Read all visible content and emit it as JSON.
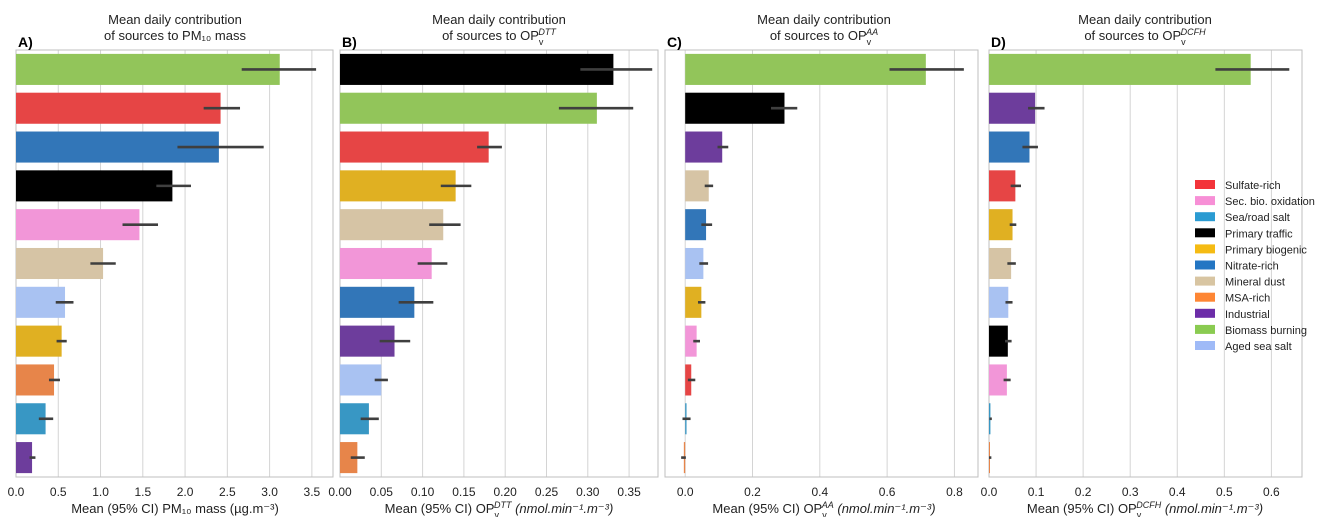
{
  "chart_data": [
    {
      "type": "bar",
      "orientation": "horizontal",
      "panel_label": "A)",
      "title": "Mean daily contribution\nof sources to PM₁₀ mass",
      "xlabel": "Mean (95% CI) PM₁₀ mass (µg.m⁻³)",
      "xlim": [
        0,
        3.75
      ],
      "xticks": [
        0.0,
        0.5,
        1.0,
        1.5,
        2.0,
        2.5,
        3.0,
        3.5
      ],
      "xtick_labels": [
        "0.0",
        "0.5",
        "1.0",
        "1.5",
        "2.0",
        "2.5",
        "3.0",
        "3.5"
      ],
      "grid": "vertical",
      "categories": [
        "Biomass burning",
        "Sulfate-rich",
        "Nitrate-rich",
        "Primary traffic",
        "Sec. bio. oxidation",
        "Mineral dust",
        "Aged sea salt",
        "Primary biogenic",
        "MSA-rich",
        "Sea/road salt",
        "Industrial"
      ],
      "values": [
        3.12,
        2.42,
        2.4,
        1.85,
        1.46,
        1.03,
        0.58,
        0.54,
        0.45,
        0.35,
        0.19
      ],
      "ci_low": [
        2.67,
        2.22,
        1.91,
        1.66,
        1.26,
        0.88,
        0.47,
        0.48,
        0.39,
        0.27,
        0.16
      ],
      "ci_high": [
        3.55,
        2.65,
        2.93,
        2.07,
        1.68,
        1.18,
        0.68,
        0.6,
        0.52,
        0.44,
        0.23
      ]
    },
    {
      "type": "bar",
      "orientation": "horizontal",
      "panel_label": "B)",
      "title": "Mean daily contribution\nof sources to OPv^DTT",
      "title_sub": "v",
      "title_sup": "DTT",
      "xlabel": "Mean (95% CI) OPv^DTT (nmol.min⁻¹.m⁻³)",
      "xlim": [
        0,
        0.385
      ],
      "xticks": [
        0.0,
        0.05,
        0.1,
        0.15,
        0.2,
        0.25,
        0.3,
        0.35
      ],
      "xtick_labels": [
        "0.00",
        "0.05",
        "0.10",
        "0.15",
        "0.20",
        "0.25",
        "0.30",
        "0.35"
      ],
      "grid": "vertical",
      "categories": [
        "Primary traffic",
        "Biomass burning",
        "Sulfate-rich",
        "Primary biogenic",
        "Mineral dust",
        "Sec. bio. oxidation",
        "Nitrate-rich",
        "Industrial",
        "Aged sea salt",
        "Sea/road salt",
        "MSA-rich"
      ],
      "values": [
        0.331,
        0.311,
        0.18,
        0.14,
        0.125,
        0.111,
        0.09,
        0.066,
        0.05,
        0.035,
        0.021
      ],
      "ci_low": [
        0.291,
        0.265,
        0.166,
        0.122,
        0.108,
        0.094,
        0.071,
        0.048,
        0.042,
        0.025,
        0.013
      ],
      "ci_high": [
        0.378,
        0.355,
        0.196,
        0.159,
        0.146,
        0.13,
        0.113,
        0.085,
        0.058,
        0.047,
        0.03
      ]
    },
    {
      "type": "bar",
      "orientation": "horizontal",
      "panel_label": "C)",
      "title": "Mean daily contribution\nof sources to OPv^AA",
      "title_sub": "v",
      "title_sup": "AA",
      "xlabel": "Mean (95% CI) OPv^AA (nmol.min⁻¹.m⁻³)",
      "xlim": [
        -0.06,
        0.87
      ],
      "xticks": [
        0.0,
        0.2,
        0.4,
        0.6,
        0.8
      ],
      "xtick_labels": [
        "0.0",
        "0.2",
        "0.4",
        "0.6",
        "0.8"
      ],
      "grid": "vertical",
      "categories": [
        "Biomass burning",
        "Primary traffic",
        "Industrial",
        "Mineral dust",
        "Nitrate-rich",
        "Aged sea salt",
        "Primary biogenic",
        "Sec. bio. oxidation",
        "Sulfate-rich",
        "Sea/road salt",
        "MSA-rich"
      ],
      "values": [
        0.715,
        0.295,
        0.11,
        0.07,
        0.062,
        0.054,
        0.048,
        0.034,
        0.018,
        0.004,
        -0.004
      ],
      "ci_low": [
        0.607,
        0.255,
        0.096,
        0.058,
        0.048,
        0.042,
        0.038,
        0.024,
        0.008,
        -0.008,
        -0.012
      ],
      "ci_high": [
        0.828,
        0.333,
        0.128,
        0.083,
        0.08,
        0.068,
        0.06,
        0.044,
        0.03,
        0.016,
        0.002
      ]
    },
    {
      "type": "bar",
      "orientation": "horizontal",
      "panel_label": "D)",
      "title": "Mean daily contribution\nof sources to OPv^DCFH",
      "title_sub": "v",
      "title_sup": "DCFH",
      "xlabel": "Mean (95% CI) OPv^DCFH (nmol.min⁻¹.m⁻³)",
      "xlim": [
        0,
        0.665
      ],
      "xticks": [
        0.0,
        0.1,
        0.2,
        0.3,
        0.4,
        0.5,
        0.6
      ],
      "xtick_labels": [
        "0.0",
        "0.1",
        "0.2",
        "0.3",
        "0.4",
        "0.5",
        "0.6"
      ],
      "grid": "vertical",
      "categories": [
        "Biomass burning",
        "Industrial",
        "Nitrate-rich",
        "Sulfate-rich",
        "Primary biogenic",
        "Mineral dust",
        "Aged sea salt",
        "Primary traffic",
        "Sec. bio. oxidation",
        "Sea/road salt",
        "MSA-rich"
      ],
      "values": [
        0.556,
        0.098,
        0.086,
        0.056,
        0.05,
        0.047,
        0.041,
        0.04,
        0.038,
        0.003,
        0.002
      ],
      "ci_low": [
        0.481,
        0.083,
        0.071,
        0.046,
        0.044,
        0.039,
        0.035,
        0.034,
        0.031,
        0.001,
        0.0
      ],
      "ci_high": [
        0.638,
        0.118,
        0.104,
        0.068,
        0.058,
        0.057,
        0.05,
        0.048,
        0.046,
        0.006,
        0.005
      ]
    }
  ],
  "legend": {
    "placement": "right",
    "entries": [
      {
        "label": "Sulfate-rich",
        "color": "#f3343a"
      },
      {
        "label": "Sec. bio. oxidation",
        "color": "#f78fd6"
      },
      {
        "label": "Sea/road salt",
        "color": "#2a9bd2"
      },
      {
        "label": "Primary traffic",
        "color": "#000000"
      },
      {
        "label": "Primary biogenic",
        "color": "#f5bb13"
      },
      {
        "label": "Nitrate-rich",
        "color": "#2476c3"
      },
      {
        "label": "Mineral dust",
        "color": "#d8c5a2"
      },
      {
        "label": "MSA-rich",
        "color": "#fe8634"
      },
      {
        "label": "Industrial",
        "color": "#6c2da8"
      },
      {
        "label": "Biomass burning",
        "color": "#8acb51"
      },
      {
        "label": "Aged sea salt",
        "color": "#9fbaf7"
      }
    ]
  },
  "bar_colors": {
    "Sulfate-rich": "#e64545",
    "Sec. bio. oxidation": "#f296d8",
    "Sea/road salt": "#3897c4",
    "Primary traffic": "#000000",
    "Primary biogenic": "#e0b022",
    "Nitrate-rich": "#3276b8",
    "Mineral dust": "#d6c4a5",
    "MSA-rich": "#e7854a",
    "Industrial": "#6d3d9c",
    "Biomass burning": "#92c55a",
    "Aged sea salt": "#a9c2f2"
  },
  "errorbar_color": "#3f3f3f"
}
